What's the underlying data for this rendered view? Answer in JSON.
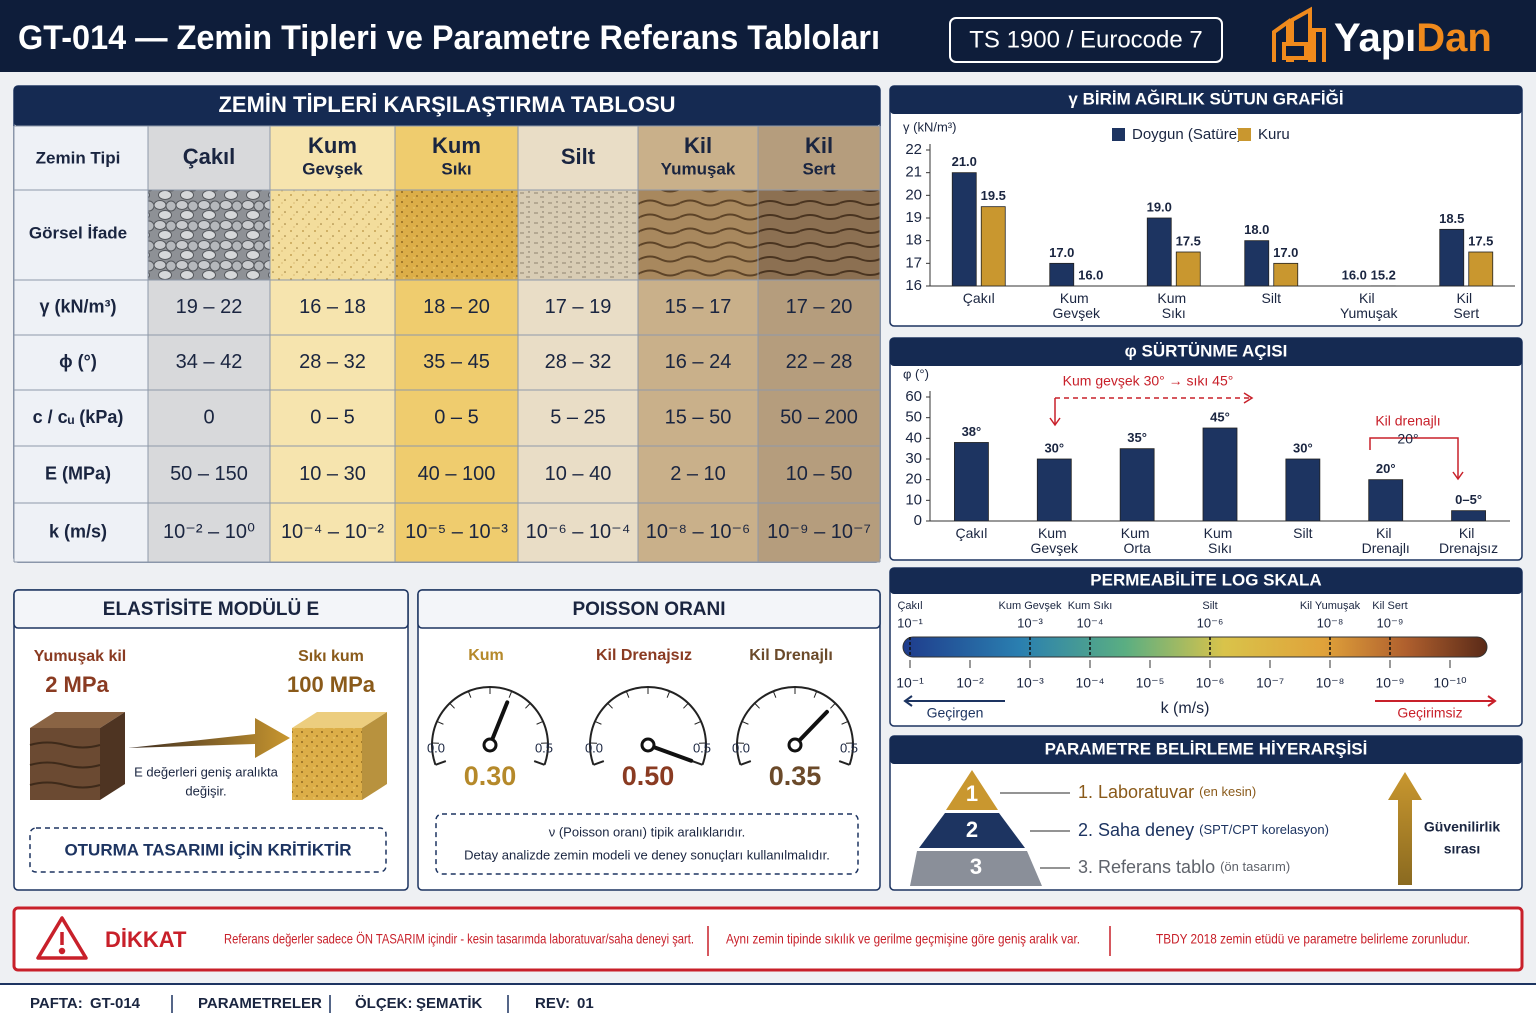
{
  "header": {
    "title": "GT-014 — Zemin Tipleri ve Parametre Referans Tabloları",
    "standard": "TS 1900 / Eurocode 7",
    "brand": [
      "Yapı",
      "Dan"
    ]
  },
  "table": {
    "title": "ZEMİN TİPLERİ KARŞILAŞTIRMA TABLOSU",
    "header_label": "Zemin Tipi",
    "visual_label": "Görsel İfade",
    "columns": [
      {
        "name": "Çakıl",
        "color": "#d8d9db"
      },
      {
        "name": "Kum",
        "sub": "Gevşek",
        "color": "#f6e4ae"
      },
      {
        "name": "Kum",
        "sub": "Sıkı",
        "color": "#efcc6e"
      },
      {
        "name": "Silt",
        "color": "#e9ddc6"
      },
      {
        "name": "Kil",
        "sub": "Yumuşak",
        "color": "#c9b08a"
      },
      {
        "name": "Kil",
        "sub": "Sert",
        "color": "#b59d7d"
      }
    ],
    "rows": [
      {
        "label": "γ (kN/m³)",
        "values": [
          "19 – 22",
          "16 – 18",
          "18 – 20",
          "17 – 19",
          "15 – 17",
          "17 – 20"
        ]
      },
      {
        "label": "ϕ (°)",
        "values": [
          "34 – 42",
          "28 – 32",
          "35 – 45",
          "28 – 32",
          "16 – 24",
          "22 – 28"
        ]
      },
      {
        "label": "c / cᵤ (kPa)",
        "values": [
          "0",
          "0 – 5",
          "0 – 5",
          "5 – 25",
          "15 – 50",
          "50 – 200"
        ]
      },
      {
        "label": "E (MPa)",
        "values": [
          "50 – 150",
          "10 – 30",
          "40 – 100",
          "10 – 40",
          "2 – 10",
          "10 – 50"
        ]
      },
      {
        "label": "k (m/s)",
        "values": [
          "10⁻² – 10⁰",
          "10⁻⁴ – 10⁻²",
          "10⁻⁵ – 10⁻³",
          "10⁻⁶ – 10⁻⁴",
          "10⁻⁸ – 10⁻⁶",
          "10⁻⁹ – 10⁻⁷"
        ]
      }
    ]
  },
  "chart_data": [
    {
      "type": "bar",
      "title": "γ BİRİM AĞIRLIK SÜTUN GRAFİĞİ",
      "ylabel": "γ (kN/m³)",
      "categories": [
        "Çakıl",
        "Kum Gevşek",
        "Kum Sıkı",
        "Silt",
        "Kil Yumuşak",
        "Kil Sert"
      ],
      "series": [
        {
          "name": "Doygun (Satüre)",
          "color": "#1d3461",
          "values": [
            21,
            17,
            19,
            18,
            16,
            18.5
          ],
          "value_labels": [
            "21.0",
            "17.0",
            "19.0",
            "18.0",
            "16.0",
            "18.5"
          ]
        },
        {
          "name": "Kuru",
          "color": "#c9972f",
          "values": [
            19.5,
            16,
            17.5,
            17,
            15.2,
            17.5
          ],
          "value_labels": [
            "19.5",
            "16.0",
            "17.5",
            "17.0",
            "15.2",
            "17.5"
          ]
        }
      ],
      "ylim": [
        16,
        22
      ],
      "yticks": [
        16,
        17,
        18,
        19,
        20,
        21,
        22
      ],
      "grid": false
    },
    {
      "type": "bar",
      "title": "φ SÜRTÜNME AÇISI",
      "ylabel": "φ (°)",
      "categories": [
        "Çakıl",
        "Kum Gevşek",
        "Kum Orta",
        "Kum Sıkı",
        "Silt",
        "Kil Drenajlı",
        "Kil Drenajsız"
      ],
      "values": [
        38,
        30,
        35,
        45,
        30,
        20,
        5
      ],
      "value_labels": [
        "38°",
        "30°",
        "35°",
        "45°",
        "30°",
        "20°",
        "0–5°"
      ],
      "color": "#1d3461",
      "ylim": [
        0,
        60
      ],
      "yticks": [
        0,
        10,
        20,
        30,
        40,
        50,
        60
      ],
      "grid": false,
      "annotations": [
        "Kum gevşek 30° → sıkı 45°",
        "Kil drenajlı",
        "20°"
      ]
    },
    {
      "type": "log_scale",
      "title": "PERMEABİLİTE LOG SKALA",
      "xlabel": "k (m/s)",
      "log": true,
      "xlim": [
        0.1,
        1e-10
      ],
      "xticks": [
        {
          "value": 0.1,
          "label": "10⁻¹"
        },
        {
          "value": 0.01,
          "label": "10⁻²"
        },
        {
          "value": 0.001,
          "label": "10⁻³"
        },
        {
          "value": 0.0001,
          "label": "10⁻⁴"
        },
        {
          "value": 1e-05,
          "label": "10⁻⁵"
        },
        {
          "value": 1e-06,
          "label": "10⁻⁶"
        },
        {
          "value": 1e-07,
          "label": "10⁻⁷"
        },
        {
          "value": 1e-08,
          "label": "10⁻⁸"
        },
        {
          "value": 1e-09,
          "label": "10⁻⁹"
        },
        {
          "value": 1e-10,
          "label": "10⁻¹⁰"
        }
      ],
      "markers": [
        {
          "name": "Çakıl",
          "value": 0.1,
          "label": "10⁻¹"
        },
        {
          "name": "Kum Gevşek",
          "value": 0.001,
          "label": "10⁻³"
        },
        {
          "name": "Kum Sıkı",
          "value": 0.0001,
          "label": "10⁻⁴"
        },
        {
          "name": "Silt",
          "value": 1e-06,
          "label": "10⁻⁶"
        },
        {
          "name": "Kil Yumuşak",
          "value": 1e-08,
          "label": "10⁻⁸"
        },
        {
          "name": "Kil Sert",
          "value": 1e-09,
          "label": "10⁻⁹"
        }
      ],
      "annotations": [
        "Geçirgen",
        "Geçirimsiz"
      ]
    },
    {
      "type": "gauge",
      "title": "POISSON ORANI",
      "categories": [
        "Kum",
        "Kil Drenajsız",
        "Kil Drenajlı"
      ],
      "values": [
        0.3,
        0.5,
        0.35
      ],
      "value_labels": [
        "0.30",
        "0.50",
        "0.35"
      ],
      "colors": [
        "#b5892a",
        "#8a3b22",
        "#6b4a2a"
      ],
      "ylim": [
        0,
        0.5
      ],
      "yticks": [
        {
          "value": 0,
          "label": "0.0"
        },
        {
          "value": 0.5,
          "label": "0.5"
        }
      ],
      "notes": [
        "ν (Poisson oranı) tipik aralıklarıdır.",
        "Detay analizde zemin modeli ve deney sonuçları kullanılmalıdır."
      ]
    }
  ],
  "elasticity": {
    "title": "ELASTİSİTE MODÜLÜ E",
    "left_label": "Yumuşak kil",
    "left_value": "2 MPa",
    "right_label": "Sıkı kum",
    "right_value": "100 MPa",
    "note_lines": [
      "E değerleri geniş aralıkta",
      "değişir."
    ],
    "callout": "OTURMA TASARIMI İÇİN KRİTİKTİR"
  },
  "hierarchy": {
    "title": "PARAMETRE BELİRLEME HİYERARŞİSİ",
    "levels": [
      {
        "num": "1",
        "label": "1. Laboratuvar",
        "note": "(en kesin)"
      },
      {
        "num": "2",
        "label": "2. Saha deney",
        "note": "(SPT/CPT korelasyon)"
      },
      {
        "num": "3",
        "label": "3. Referans tablo",
        "note": "(ön tasarım)"
      }
    ],
    "side_lines": [
      "Güvenilirlik",
      "sırası"
    ]
  },
  "warning": {
    "title": "DİKKAT",
    "messages": [
      "Referans değerler sadece ÖN TASARIM içindir - kesin tasarımda laboratuvar/saha deneyi şart.",
      "Aynı zemin tipinde sıkılık ve gerilme geçmişine göre geniş aralık var.",
      "TBDY 2018 zemin etüdü ve parametre belirleme zorunludur."
    ]
  },
  "footer": [
    {
      "label": "PAFTA:",
      "value": "GT-014"
    },
    {
      "value": "PARAMETRELER"
    },
    {
      "label": "ÖLÇEK:",
      "value": "ŞEMATİK"
    },
    {
      "label": "REV:",
      "value": "01"
    }
  ]
}
